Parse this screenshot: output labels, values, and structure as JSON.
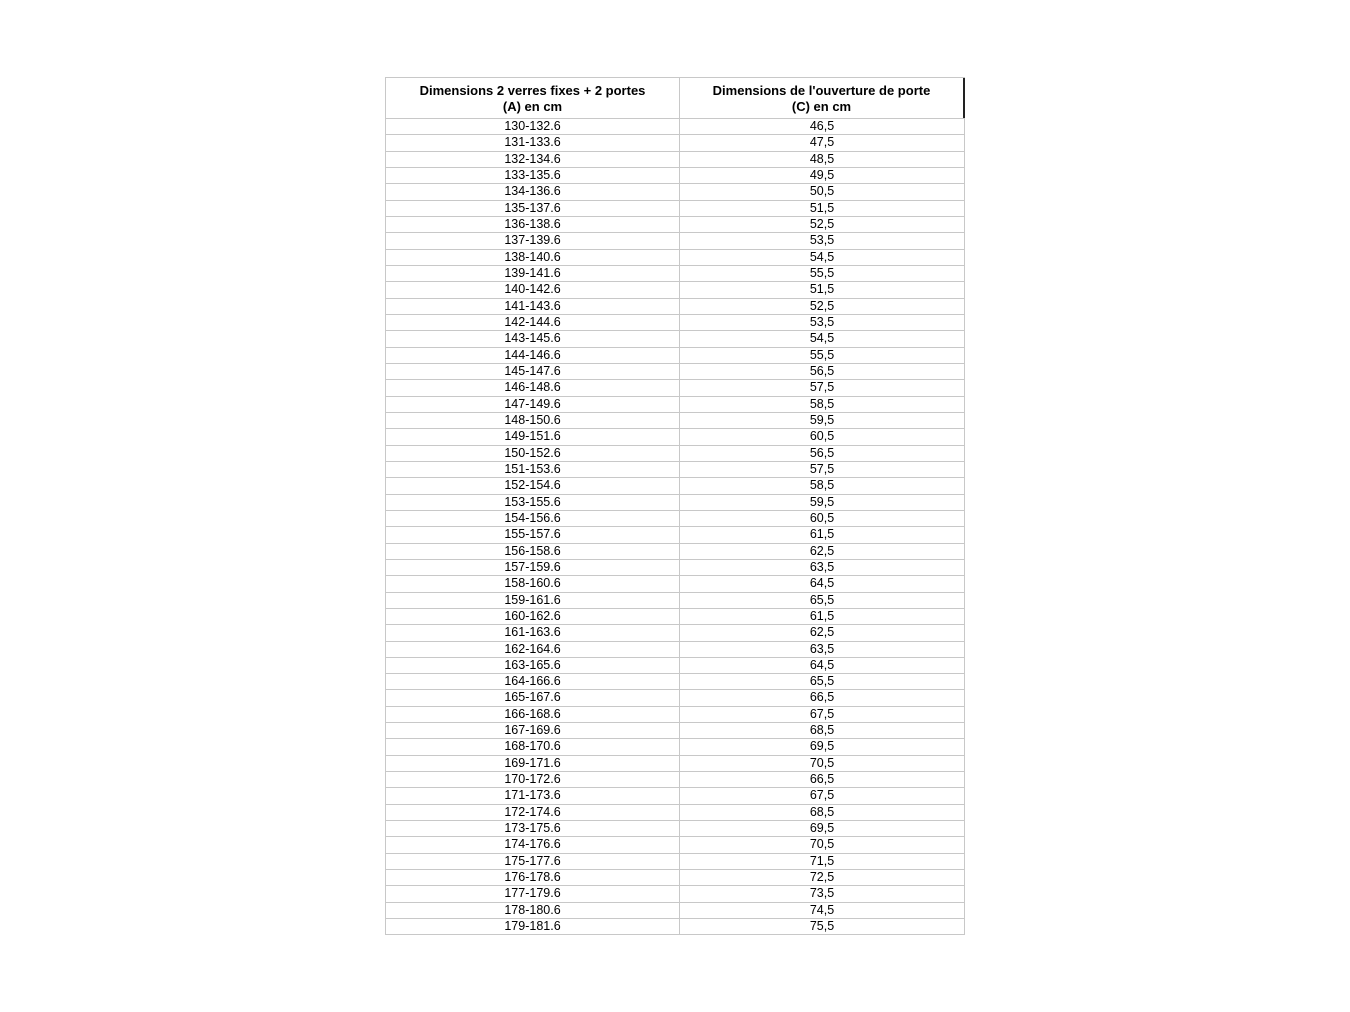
{
  "table": {
    "headers": {
      "col_a_line1": "Dimensions 2 verres fixes + 2 portes",
      "col_a_line2": "(A) en cm",
      "col_c_line1": "Dimensions de l'ouverture de porte",
      "col_c_line2": "(C) en cm"
    },
    "rows": [
      [
        "130-132.6",
        "46,5"
      ],
      [
        "131-133.6",
        "47,5"
      ],
      [
        "132-134.6",
        "48,5"
      ],
      [
        "133-135.6",
        "49,5"
      ],
      [
        "134-136.6",
        "50,5"
      ],
      [
        "135-137.6",
        "51,5"
      ],
      [
        "136-138.6",
        "52,5"
      ],
      [
        "137-139.6",
        "53,5"
      ],
      [
        "138-140.6",
        "54,5"
      ],
      [
        "139-141.6",
        "55,5"
      ],
      [
        "140-142.6",
        "51,5"
      ],
      [
        "141-143.6",
        "52,5"
      ],
      [
        "142-144.6",
        "53,5"
      ],
      [
        "143-145.6",
        "54,5"
      ],
      [
        "144-146.6",
        "55,5"
      ],
      [
        "145-147.6",
        "56,5"
      ],
      [
        "146-148.6",
        "57,5"
      ],
      [
        "147-149.6",
        "58,5"
      ],
      [
        "148-150.6",
        "59,5"
      ],
      [
        "149-151.6",
        "60,5"
      ],
      [
        "150-152.6",
        "56,5"
      ],
      [
        "151-153.6",
        "57,5"
      ],
      [
        "152-154.6",
        "58,5"
      ],
      [
        "153-155.6",
        "59,5"
      ],
      [
        "154-156.6",
        "60,5"
      ],
      [
        "155-157.6",
        "61,5"
      ],
      [
        "156-158.6",
        "62,5"
      ],
      [
        "157-159.6",
        "63,5"
      ],
      [
        "158-160.6",
        "64,5"
      ],
      [
        "159-161.6",
        "65,5"
      ],
      [
        "160-162.6",
        "61,5"
      ],
      [
        "161-163.6",
        "62,5"
      ],
      [
        "162-164.6",
        "63,5"
      ],
      [
        "163-165.6",
        "64,5"
      ],
      [
        "164-166.6",
        "65,5"
      ],
      [
        "165-167.6",
        "66,5"
      ],
      [
        "166-168.6",
        "67,5"
      ],
      [
        "167-169.6",
        "68,5"
      ],
      [
        "168-170.6",
        "69,5"
      ],
      [
        "169-171.6",
        "70,5"
      ],
      [
        "170-172.6",
        "66,5"
      ],
      [
        "171-173.6",
        "67,5"
      ],
      [
        "172-174.6",
        "68,5"
      ],
      [
        "173-175.6",
        "69,5"
      ],
      [
        "174-176.6",
        "70,5"
      ],
      [
        "175-177.6",
        "71,5"
      ],
      [
        "176-178.6",
        "72,5"
      ],
      [
        "177-179.6",
        "73,5"
      ],
      [
        "178-180.6",
        "74,5"
      ],
      [
        "179-181.6",
        "75,5"
      ]
    ]
  }
}
